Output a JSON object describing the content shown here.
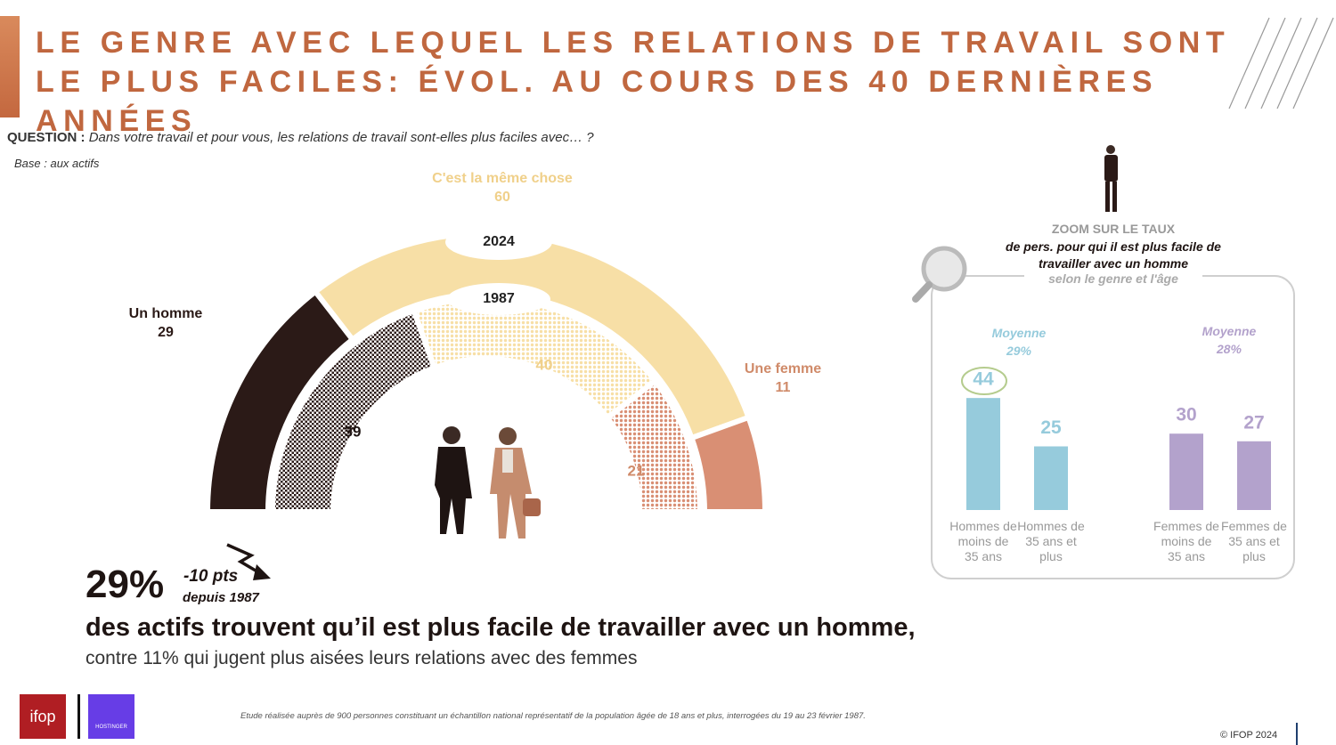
{
  "header": {
    "title": "LE GENRE AVEC LEQUEL LES RELATIONS DE TRAVAIL SONT LE PLUS FACILES: ÉVOL. AU COURS DES 40 DERNIÈRES ANNÉES"
  },
  "question": {
    "label": "QUESTION :",
    "text": "Dans votre travail et pour vous, les relations de travail sont-elles plus faciles avec… ?"
  },
  "base": "Base : aux actifs",
  "chart_data": [
    {
      "type": "semi-donut",
      "categories": [
        "Un homme",
        "C'est la même chose",
        "Une femme"
      ],
      "colors": [
        "#2b1a17",
        "#f7dfa6",
        "#d98f74"
      ],
      "series": [
        {
          "name": "2024",
          "values": [
            29,
            60,
            11
          ]
        },
        {
          "name": "1987",
          "values": [
            39,
            40,
            21
          ]
        }
      ]
    },
    {
      "type": "bar",
      "title": "ZOOM SUR LE TAUX",
      "subtitle": "de pers. pour qui il est plus facile de travailler avec un homme",
      "note": "selon le genre et l'âge",
      "categories": [
        "Hommes de moins de 35 ans",
        "Hommes de 35 ans et plus",
        "Femmes de moins de 35 ans",
        "Femmes de 35 ans et plus"
      ],
      "values": [
        44,
        25,
        30,
        27
      ],
      "colors": [
        "#96cbdc",
        "#96cbdc",
        "#b3a2cc",
        "#b3a2cc"
      ],
      "annotations": [
        {
          "label": "Moyenne",
          "text": "29%"
        },
        {
          "label": "Moyenne",
          "text": "28%"
        }
      ]
    }
  ],
  "headline": {
    "value": "29%",
    "change": "-10 pts",
    "since": "depuis 1987",
    "text": "des actifs trouvent qu’il est plus facile de travailler avec un homme,",
    "subtext": "contre 11% qui jugent plus aisées leurs relations avec des femmes"
  },
  "footer": {
    "note": "Etude réalisée auprès de 900 personnes constituant un échantillon national représentatif de la population âgée de 18 ans et plus, interrogées du 19 au 23 février 1987.",
    "copyright": "© IFOP 2024",
    "logos": [
      "ifop",
      "HOSTINGER"
    ]
  }
}
